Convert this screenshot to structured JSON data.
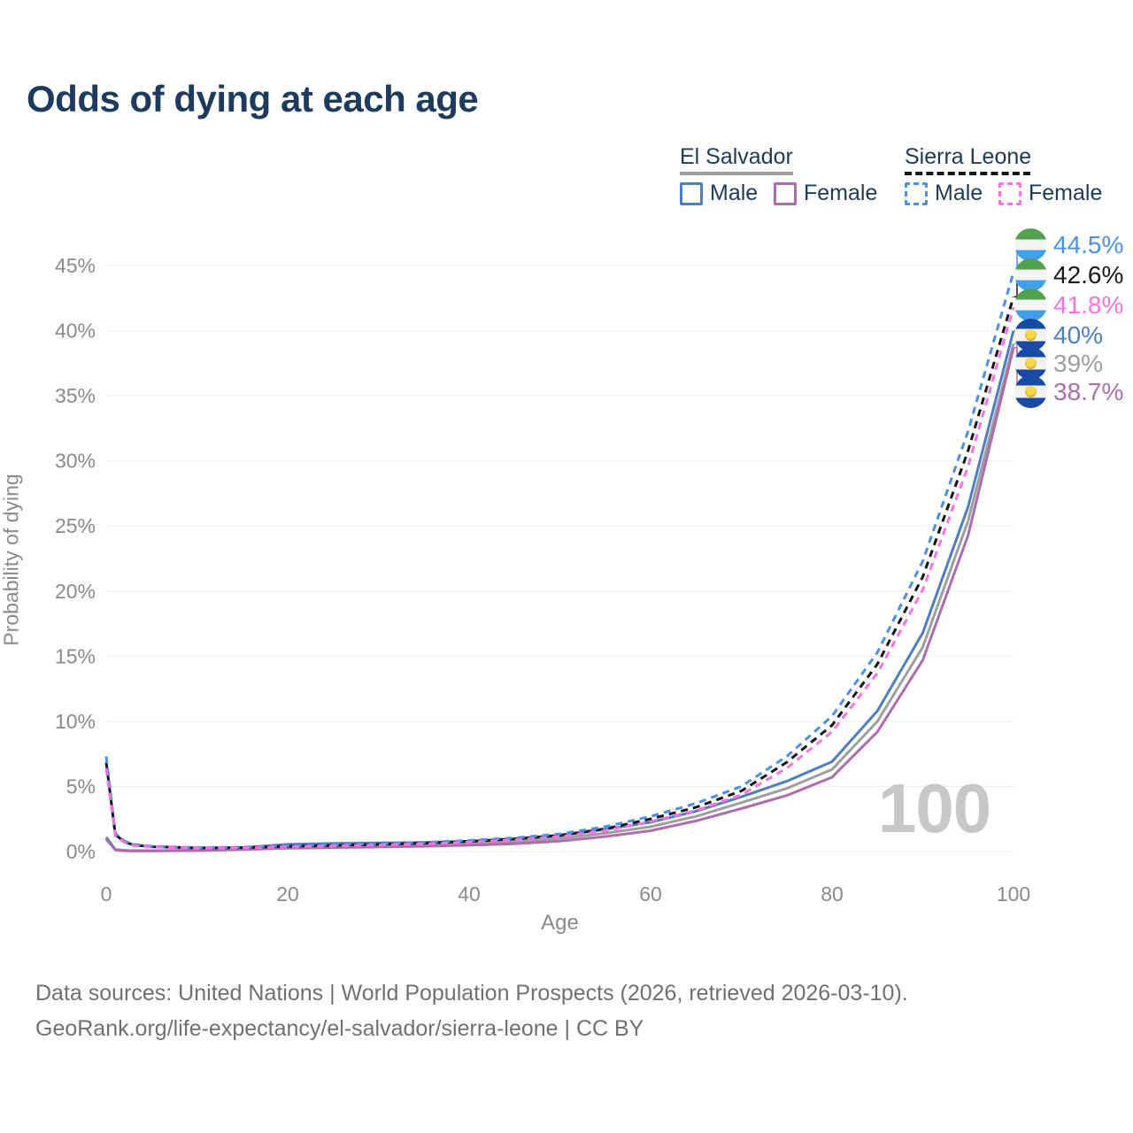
{
  "title": "Odds of dying at each age",
  "watermark": "100",
  "legend": {
    "groups": [
      {
        "label": "El Salvador",
        "line_style": "solid",
        "line_color": "#9e9e9e",
        "items": [
          {
            "label": "Male",
            "color": "#4d7ec3",
            "style": "solid"
          },
          {
            "label": "Female",
            "color": "#ae6cae",
            "style": "solid"
          }
        ]
      },
      {
        "label": "Sierra Leone",
        "line_style": "dashed",
        "line_color": "#151515",
        "items": [
          {
            "label": "Male",
            "color": "#4a8fe8",
            "style": "dashed"
          },
          {
            "label": "Female",
            "color": "#fb70e4",
            "style": "dashed"
          }
        ]
      }
    ]
  },
  "end_labels": [
    {
      "text": "44.5%",
      "value": 44.5,
      "color": "#4a8fe8",
      "flag": "sierra-leone",
      "series": 0
    },
    {
      "text": "42.6%",
      "value": 42.6,
      "color": "#1a1a1a",
      "flag": "sierra-leone",
      "series": 1
    },
    {
      "text": "41.8%",
      "value": 41.8,
      "color": "#fb70e4",
      "flag": "sierra-leone",
      "series": 2
    },
    {
      "text": "40%",
      "value": 40.0,
      "color": "#4d7ec3",
      "flag": "el-salvador",
      "series": 3
    },
    {
      "text": "39%",
      "value": 39.0,
      "color": "#9e9e9e",
      "flag": "el-salvador",
      "series": 4
    },
    {
      "text": "38.7%",
      "value": 38.7,
      "color": "#ae6cae",
      "flag": "el-salvador",
      "series": 5
    }
  ],
  "footer": {
    "line1": "Data sources: United Nations | World Population Prospects (2026, retrieved 2026-03-10).",
    "line2": "GeoRank.org/life-expectancy/el-salvador/sierra-leone | CC BY"
  },
  "chart_data": {
    "type": "line",
    "title": "Odds of dying at each age",
    "xlabel": "Age",
    "ylabel": "Probability of dying",
    "xlim": [
      0,
      100
    ],
    "ylim": [
      0,
      45
    ],
    "grid": "horizontal",
    "legend_position": "top-right",
    "x_ticks": [
      0,
      20,
      40,
      60,
      80,
      100
    ],
    "x_tick_labels": [
      "0",
      "20",
      "40",
      "60",
      "80",
      "100"
    ],
    "y_ticks": [
      0,
      5,
      10,
      15,
      20,
      25,
      30,
      35,
      40,
      45
    ],
    "y_tick_labels": [
      "0%",
      "5%",
      "10%",
      "15%",
      "20%",
      "25%",
      "30%",
      "35%",
      "40%",
      "45%"
    ],
    "x": [
      0,
      1,
      2,
      3,
      5,
      10,
      15,
      20,
      25,
      30,
      35,
      40,
      45,
      50,
      55,
      60,
      65,
      70,
      75,
      80,
      85,
      90,
      95,
      100
    ],
    "series": [
      {
        "name": "Sierra Leone Male",
        "country": "Sierra Leone",
        "sex": "Male",
        "color": "#4a8fe8",
        "dashed": true,
        "end_label": "44.5%",
        "values": [
          7.3,
          1.4,
          0.8,
          0.55,
          0.4,
          0.3,
          0.33,
          0.45,
          0.52,
          0.6,
          0.7,
          0.85,
          1.05,
          1.35,
          1.9,
          2.7,
          3.7,
          5.0,
          7.3,
          10.4,
          15.3,
          22.3,
          32.3,
          44.5
        ]
      },
      {
        "name": "Sierra Leone Both sexes",
        "country": "Sierra Leone",
        "sex": "Both",
        "color": "#151515",
        "dashed": true,
        "end_label": "42.6%",
        "values": [
          6.85,
          1.3,
          0.75,
          0.5,
          0.37,
          0.28,
          0.3,
          0.4,
          0.47,
          0.55,
          0.64,
          0.78,
          0.97,
          1.25,
          1.75,
          2.5,
          3.4,
          4.65,
          6.85,
          9.7,
          14.4,
          21.1,
          30.8,
          42.6
        ]
      },
      {
        "name": "Sierra Leone Female",
        "country": "Sierra Leone",
        "sex": "Female",
        "color": "#fb70e4",
        "dashed": true,
        "end_label": "41.8%",
        "values": [
          6.4,
          1.2,
          0.7,
          0.47,
          0.35,
          0.26,
          0.28,
          0.36,
          0.42,
          0.5,
          0.58,
          0.72,
          0.9,
          1.15,
          1.6,
          2.3,
          3.15,
          4.35,
          6.4,
          9.2,
          13.7,
          20.1,
          29.6,
          41.8
        ]
      },
      {
        "name": "El Salvador Male",
        "country": "El Salvador",
        "sex": "Male",
        "color": "#4d7ec3",
        "dashed": false,
        "end_label": "40%",
        "values": [
          1.1,
          0.15,
          0.08,
          0.06,
          0.06,
          0.1,
          0.3,
          0.55,
          0.62,
          0.66,
          0.7,
          0.78,
          0.95,
          1.2,
          1.7,
          2.25,
          3.1,
          4.2,
          5.4,
          6.9,
          10.8,
          16.8,
          26.5,
          40.0
        ]
      },
      {
        "name": "El Salvador Both sexes",
        "country": "El Salvador",
        "sex": "Both",
        "color": "#9e9e9e",
        "dashed": false,
        "end_label": "39%",
        "values": [
          1.02,
          0.13,
          0.07,
          0.055,
          0.055,
          0.085,
          0.22,
          0.4,
          0.46,
          0.5,
          0.55,
          0.63,
          0.77,
          1.0,
          1.4,
          1.9,
          2.7,
          3.75,
          4.85,
          6.3,
          10.0,
          15.7,
          25.4,
          39.0
        ]
      },
      {
        "name": "El Salvador Female",
        "country": "El Salvador",
        "sex": "Female",
        "color": "#ae6cae",
        "dashed": false,
        "end_label": "38.7%",
        "values": [
          0.95,
          0.12,
          0.06,
          0.05,
          0.05,
          0.07,
          0.15,
          0.25,
          0.3,
          0.35,
          0.4,
          0.48,
          0.6,
          0.8,
          1.15,
          1.6,
          2.35,
          3.3,
          4.3,
          5.7,
          9.2,
          14.7,
          24.3,
          38.7
        ]
      }
    ]
  }
}
